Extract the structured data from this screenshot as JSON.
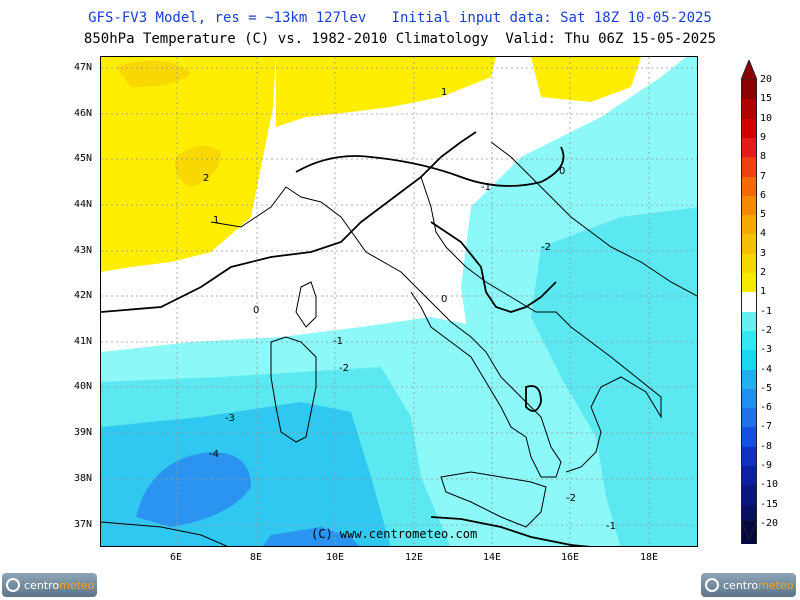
{
  "header": {
    "title_line1": "GFS-FV3 Model, res = ~13km 127lev   Initial input data: Sat 18Z 10-05-2025",
    "title_line2": "850hPa Temperature (C) vs. 1982-2010 Climatology  Valid: Thu 06Z 15-05-2025"
  },
  "map": {
    "lat_labels": [
      "47N",
      "46N",
      "45N",
      "44N",
      "43N",
      "42N",
      "41N",
      "40N",
      "39N",
      "38N",
      "37N"
    ],
    "lon_labels": [
      "6E",
      "8E",
      "10E",
      "12E",
      "14E",
      "16E",
      "18E"
    ],
    "copyright": "(C) www.centrometeo.com",
    "contour_labels": [
      "2",
      "1",
      "1",
      "-1",
      "-2",
      "0",
      "0",
      "0",
      "-1",
      "-2",
      "-3",
      "-4",
      "-2",
      "-1"
    ]
  },
  "colorbar": {
    "labels": [
      "20",
      "15",
      "10",
      "9",
      "8",
      "7",
      "6",
      "5",
      "4",
      "3",
      "2",
      "1",
      "-1",
      "-2",
      "-3",
      "-4",
      "-5",
      "-6",
      "-7",
      "-8",
      "-9",
      "-10",
      "-15",
      "-20"
    ],
    "colors": [
      "#8b0000",
      "#b00000",
      "#d40000",
      "#e41a1a",
      "#f04010",
      "#f56a00",
      "#f58a00",
      "#f5a800",
      "#f5c000",
      "#f5d800",
      "#f5ea00",
      "#ffffff",
      "#66f0f0",
      "#33e8f0",
      "#18d8f0",
      "#20b0f0",
      "#2090f0",
      "#2070e8",
      "#1550e0",
      "#1030c0",
      "#0a20a0",
      "#081880",
      "#061060",
      "#040840"
    ]
  },
  "logos": {
    "left_a": "centro",
    "left_b": "meteo",
    "right_a": "centro",
    "right_b": "meteo"
  }
}
